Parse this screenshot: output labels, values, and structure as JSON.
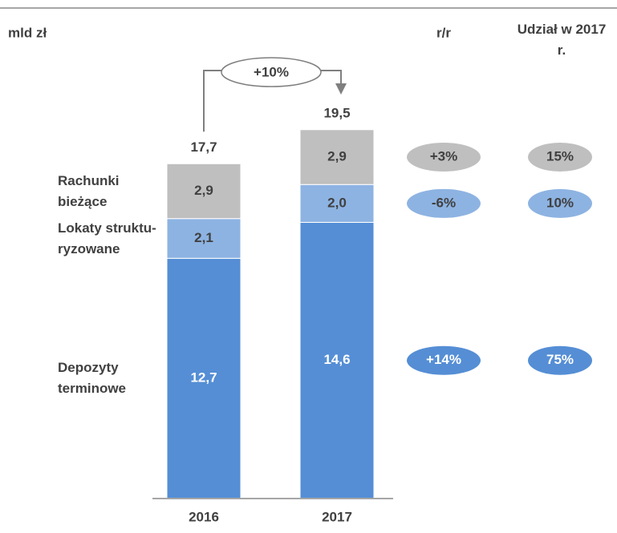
{
  "chart_data": {
    "type": "stacked-bar",
    "unit_label": "mld zł",
    "categories": [
      "2016",
      "2017"
    ],
    "series": [
      {
        "name": "Depozyty terminowe",
        "color": "#558ed5",
        "values": [
          12.7,
          14.6
        ],
        "value_labels": [
          "12,7",
          "14,6"
        ],
        "change": "+14%",
        "share": "75%"
      },
      {
        "name": "Lokaty struktu-ryzowane",
        "color": "#8db3e2",
        "values": [
          2.1,
          2.0
        ],
        "value_labels": [
          "2,1",
          "2,0"
        ],
        "change": "-6%",
        "share": "10%"
      },
      {
        "name": "Rachunki bieżące",
        "color": "#bfbfbf",
        "values": [
          2.9,
          2.9
        ],
        "value_labels": [
          "2,9",
          "2,9"
        ],
        "change": "+3%",
        "share": "15%"
      }
    ],
    "totals": [
      17.7,
      19.5
    ],
    "total_labels": [
      "17,7",
      "19,5"
    ],
    "growth_label": "+10%",
    "change_header": "r/r",
    "share_header": "Udział w 2017 r."
  }
}
